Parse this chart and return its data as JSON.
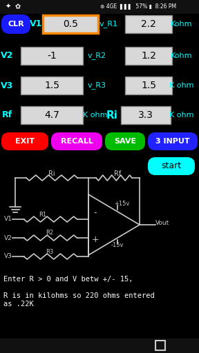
{
  "bg_color": "#000000",
  "cyan": "#00ffff",
  "white": "#ffffff",
  "clr_btn_color": "#1a1aff",
  "clr_btn_text": "CLR",
  "highlight_border": "#ff8800",
  "input_bg": "#d8d8d8",
  "row0": {
    "label": "V1",
    "v": "0.5",
    "mid": "v_R1",
    "r": "2.2",
    "unit": "Kohm",
    "highlight": true
  },
  "row1": {
    "label": "V2",
    "v": "-1",
    "mid": "v_R2",
    "r": "1.2",
    "unit": "Kohm",
    "highlight": false
  },
  "row2": {
    "label": "V3",
    "v": "1.5",
    "mid": "v_R3",
    "r": "1.5",
    "unit": "K ohm",
    "highlight": false
  },
  "row3": {
    "label": "Rf",
    "v": "4.7",
    "mid": "K ohm",
    "mid2": "Ri",
    "r": "3.3",
    "unit": "K ohm",
    "highlight": false
  },
  "buttons": [
    {
      "text": "EXIT",
      "color": "#ff0000"
    },
    {
      "text": "RECALL",
      "color": "#ee00ee"
    },
    {
      "text": "SAVE",
      "color": "#00bb00"
    },
    {
      "text": "3 INPUT",
      "color": "#2222ff"
    }
  ],
  "start_btn_color": "#00ffff",
  "start_btn_text": "start",
  "circuit_color": "#cccccc",
  "text1": "Enter R > 0 and V betw +/- 15,",
  "text2": "R is in kilohms so 220 ohms entered\nas .22K",
  "nav_color": "#cccccc"
}
